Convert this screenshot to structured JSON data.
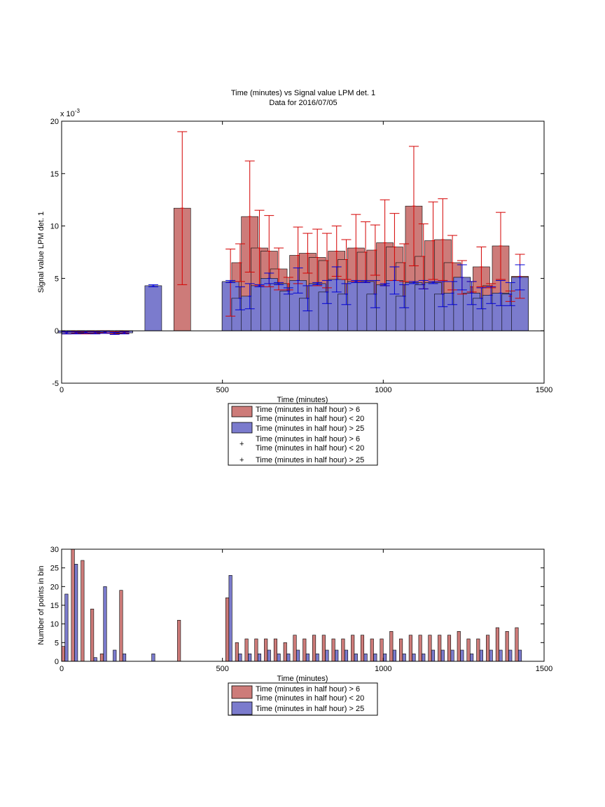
{
  "chart_data": [
    {
      "type": "bar",
      "title": "Time (minutes) vs Signal value LPM det. 1",
      "subtitle": "Data for 2016/07/05",
      "xlabel": "Time (minutes)",
      "ylabel": "Signal value LPM det. 1",
      "y_multiplier": "x 10",
      "y_multiplier_exp": "-3",
      "xlim": [
        0,
        1500
      ],
      "ylim": [
        -5,
        20
      ],
      "xticks": [
        "0",
        "500",
        "1000",
        "1500"
      ],
      "yticks": [
        "-5",
        "0",
        "5",
        "10",
        "15",
        "20"
      ],
      "grid": false,
      "legend_placement": "below",
      "legend": [
        {
          "kind": "patch",
          "color": "#cd7b79",
          "lines": [
            "Time (minutes in half hour) > 6",
            "Time (minutes in half hour) < 20"
          ]
        },
        {
          "kind": "patch",
          "color": "#7b7bcd",
          "lines": [
            "Time (minutes in half hour) > 25"
          ]
        },
        {
          "kind": "marker",
          "color": "#d40000",
          "lines": [
            "Time (minutes in half hour) > 6",
            "Time (minutes in half hour) < 20"
          ]
        },
        {
          "kind": "marker",
          "color": "#0000d4",
          "lines": [
            "Time (minutes in half hour) > 25"
          ]
        }
      ],
      "series": [
        {
          "color": "#cd7b79",
          "errcolor": "#d40000",
          "x": [
            15,
            45,
            75,
            105,
            135,
            165,
            195,
            375,
            525,
            555,
            585,
            615,
            645,
            675,
            705,
            735,
            765,
            795,
            825,
            855,
            885,
            915,
            945,
            975,
            1005,
            1035,
            1065,
            1095,
            1125,
            1155,
            1185,
            1215,
            1245,
            1275,
            1305,
            1335,
            1365,
            1395,
            1425
          ],
          "values": [
            -0.2,
            -0.15,
            -0.2,
            -0.15,
            -0.1,
            -0.2,
            -0.15,
            11.7,
            4.6,
            6.5,
            10.9,
            7.9,
            7.6,
            5.9,
            4.5,
            7.2,
            7.4,
            7.0,
            6.7,
            7.6,
            6.8,
            7.9,
            7.5,
            7.7,
            8.4,
            8.0,
            6.5,
            11.9,
            7.1,
            8.6,
            8.7,
            6.5,
            5.1,
            4.2,
            6.1,
            4.3,
            8.1,
            3.3,
            5.2
          ],
          "err": [
            0.1,
            0.1,
            0.1,
            0.1,
            0.1,
            0.1,
            0.1,
            7.3,
            3.2,
            1.8,
            5.3,
            3.6,
            3.4,
            2.0,
            0.6,
            2.7,
            1.9,
            2.7,
            2.6,
            2.4,
            1.9,
            3.2,
            2.9,
            2.4,
            4.1,
            3.2,
            1.8,
            5.7,
            3.1,
            3.7,
            3.9,
            2.6,
            1.6,
            0.5,
            1.9,
            0.2,
            3.2,
            0.5,
            2.1
          ]
        },
        {
          "color": "#7b7bcd",
          "errcolor": "#0000d4",
          "x": [
            15,
            45,
            75,
            105,
            135,
            165,
            195,
            285,
            525,
            555,
            585,
            615,
            645,
            675,
            705,
            735,
            765,
            795,
            825,
            855,
            885,
            915,
            945,
            975,
            1005,
            1035,
            1065,
            1095,
            1125,
            1155,
            1185,
            1215,
            1245,
            1275,
            1305,
            1335,
            1365,
            1395,
            1425
          ],
          "values": [
            -0.2,
            -0.2,
            -0.15,
            -0.2,
            -0.15,
            -0.25,
            -0.2,
            4.3,
            4.7,
            3.1,
            3.3,
            4.3,
            5.0,
            4.5,
            3.8,
            4.8,
            3.1,
            4.5,
            3.7,
            4.9,
            3.5,
            4.7,
            4.7,
            3.5,
            4.4,
            4.8,
            3.3,
            4.6,
            4.4,
            4.6,
            3.5,
            3.6,
            5.1,
            3.6,
            3.1,
            3.4,
            3.6,
            3.5,
            5.1
          ],
          "err": [
            0.1,
            0.1,
            0.1,
            0.1,
            0.1,
            0.1,
            0.1,
            0.1,
            0.1,
            1.1,
            1.2,
            0.1,
            0.5,
            0.1,
            0.3,
            1.2,
            1.2,
            0.1,
            1.1,
            1.2,
            1.0,
            0.1,
            0.1,
            1.3,
            0.1,
            1.3,
            1.1,
            0.1,
            0.4,
            0.1,
            1.2,
            1.1,
            1.2,
            1.1,
            1.0,
            0.8,
            1.2,
            1.1,
            1.2
          ]
        }
      ]
    },
    {
      "type": "bar",
      "title": "",
      "xlabel": "Time (minutes)",
      "ylabel": "Number of points in bin",
      "xlim": [
        0,
        1500
      ],
      "ylim": [
        0,
        30
      ],
      "xticks": [
        "0",
        "500",
        "1000",
        "1500"
      ],
      "yticks": [
        "0",
        "5",
        "10",
        "15",
        "20",
        "25",
        "30"
      ],
      "grid": false,
      "legend_placement": "below",
      "legend": [
        {
          "kind": "patch",
          "color": "#cd7b79",
          "lines": [
            "Time (minutes in half hour) > 6",
            "Time (minutes in half hour) < 20"
          ]
        },
        {
          "kind": "patch",
          "color": "#7b7bcd",
          "lines": [
            "Time (minutes in half hour) > 25"
          ]
        }
      ],
      "series": [
        {
          "color": "#cd7b79",
          "x": [
            5,
            35,
            65,
            95,
            125,
            185,
            365,
            515,
            545,
            575,
            605,
            635,
            665,
            695,
            725,
            755,
            785,
            815,
            845,
            875,
            905,
            935,
            965,
            995,
            1025,
            1055,
            1085,
            1115,
            1145,
            1175,
            1205,
            1235,
            1265,
            1295,
            1325,
            1355,
            1385,
            1415
          ],
          "values": [
            4,
            30,
            27,
            14,
            2,
            19,
            11,
            17,
            5,
            6,
            6,
            6,
            6,
            5,
            7,
            6,
            7,
            7,
            6,
            6,
            7,
            7,
            6,
            6,
            8,
            6,
            7,
            7,
            7,
            7,
            7,
            8,
            6,
            6,
            7,
            9,
            8,
            9
          ]
        },
        {
          "color": "#7b7bcd",
          "x": [
            15,
            45,
            105,
            135,
            165,
            195,
            285,
            525,
            555,
            585,
            615,
            645,
            675,
            705,
            735,
            765,
            795,
            825,
            855,
            885,
            915,
            945,
            975,
            1005,
            1035,
            1065,
            1095,
            1125,
            1155,
            1185,
            1215,
            1245,
            1275,
            1305,
            1335,
            1365,
            1395,
            1425
          ],
          "values": [
            18,
            26,
            1,
            20,
            3,
            2,
            2,
            23,
            2,
            2,
            2,
            3,
            2,
            2,
            3,
            2,
            2,
            3,
            3,
            3,
            2,
            2,
            2,
            2,
            3,
            2,
            2,
            2,
            3,
            3,
            3,
            3,
            2,
            3,
            3,
            3,
            3,
            3
          ]
        }
      ]
    }
  ]
}
